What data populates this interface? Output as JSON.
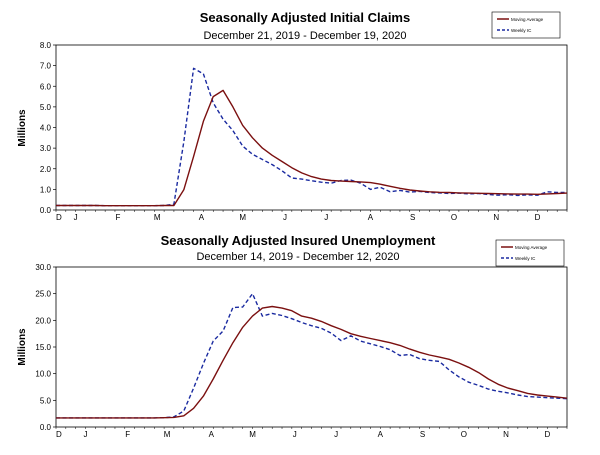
{
  "chart_data": [
    {
      "type": "line",
      "title": "Seasonally Adjusted Initial Claims",
      "subtitle": "December 21, 2019 - December 19, 2020",
      "ylabel": "Millions",
      "xlabel": "",
      "ylim": [
        0,
        8
      ],
      "yticks": [
        "0.0",
        "1.0",
        "2.0",
        "3.0",
        "4.0",
        "5.0",
        "6.0",
        "7.0",
        "8.0"
      ],
      "yvalues": [
        0,
        1,
        2,
        3,
        4,
        5,
        6,
        7,
        8
      ],
      "xlim": [
        0,
        52
      ],
      "x_tick_labels": [
        "D",
        "J",
        "F",
        "M",
        "A",
        "M",
        "J",
        "J",
        "A",
        "S",
        "O",
        "N",
        "D"
      ],
      "x_tick_positions": [
        0.3,
        2,
        6.3,
        10.3,
        14.8,
        19,
        23.3,
        27.5,
        32,
        36.3,
        40.5,
        44.8,
        49
      ],
      "legend": {
        "position": "top-right",
        "entries": [
          "Moving Average",
          "Weekly IC"
        ]
      },
      "series": [
        {
          "name": "Moving Average",
          "color": "#7b1010",
          "style": "solid",
          "x": [
            0,
            1,
            2,
            3,
            4,
            5,
            6,
            7,
            8,
            9,
            10,
            11,
            12,
            13,
            14,
            15,
            16,
            17,
            18,
            19,
            20,
            21,
            22,
            23,
            24,
            25,
            26,
            27,
            28,
            29,
            30,
            31,
            32,
            33,
            34,
            35,
            36,
            37,
            38,
            39,
            40,
            41,
            42,
            43,
            44,
            45,
            46,
            47,
            48,
            49,
            50,
            51,
            52
          ],
          "values": [
            0.22,
            0.22,
            0.22,
            0.22,
            0.22,
            0.21,
            0.21,
            0.21,
            0.21,
            0.21,
            0.21,
            0.22,
            0.22,
            0.98,
            2.6,
            4.3,
            5.5,
            5.8,
            5.0,
            4.1,
            3.5,
            3.0,
            2.65,
            2.35,
            2.05,
            1.8,
            1.62,
            1.5,
            1.43,
            1.4,
            1.38,
            1.36,
            1.33,
            1.25,
            1.15,
            1.05,
            0.97,
            0.92,
            0.88,
            0.86,
            0.85,
            0.83,
            0.82,
            0.81,
            0.8,
            0.79,
            0.78,
            0.77,
            0.77,
            0.76,
            0.78,
            0.8,
            0.82
          ]
        },
        {
          "name": "Weekly IC",
          "color": "#1a2aa0",
          "style": "dashed",
          "x": [
            0,
            1,
            2,
            3,
            4,
            5,
            6,
            7,
            8,
            9,
            10,
            11,
            12,
            13,
            14,
            15,
            16,
            17,
            18,
            19,
            20,
            21,
            22,
            23,
            24,
            25,
            26,
            27,
            28,
            29,
            30,
            31,
            32,
            33,
            34,
            35,
            36,
            37,
            38,
            39,
            40,
            41,
            42,
            43,
            44,
            45,
            46,
            47,
            48,
            49,
            50,
            51,
            52
          ],
          "values": [
            0.22,
            0.22,
            0.22,
            0.22,
            0.22,
            0.21,
            0.21,
            0.21,
            0.21,
            0.21,
            0.21,
            0.22,
            0.28,
            3.3,
            6.87,
            6.6,
            5.2,
            4.4,
            3.85,
            3.1,
            2.7,
            2.45,
            2.2,
            1.9,
            1.55,
            1.5,
            1.42,
            1.35,
            1.3,
            1.43,
            1.45,
            1.3,
            1.0,
            1.1,
            0.88,
            0.95,
            0.87,
            0.9,
            0.85,
            0.83,
            0.8,
            0.82,
            0.78,
            0.8,
            0.75,
            0.72,
            0.74,
            0.71,
            0.73,
            0.72,
            0.88,
            0.85,
            0.85
          ]
        }
      ]
    },
    {
      "type": "line",
      "title": "Seasonally Adjusted Insured Unemployment",
      "subtitle": "December 14, 2019 - December 12, 2020",
      "ylabel": "Millions",
      "xlabel": "",
      "ylim": [
        0,
        30
      ],
      "yticks": [
        "0.0",
        "5.0",
        "10.0",
        "15.0",
        "20.0",
        "25.0",
        "30.0"
      ],
      "yvalues": [
        0,
        5,
        10,
        15,
        20,
        25,
        30
      ],
      "xlim": [
        0,
        52
      ],
      "x_tick_labels": [
        "D",
        "J",
        "F",
        "M",
        "A",
        "M",
        "J",
        "J",
        "A",
        "S",
        "O",
        "N",
        "D"
      ],
      "x_tick_positions": [
        0.3,
        3,
        7.3,
        11.3,
        15.8,
        20,
        24.3,
        28.5,
        33,
        37.3,
        41.5,
        45.8,
        50
      ],
      "legend": {
        "position": "top-right",
        "entries": [
          "Moving Average",
          "Weekly IC"
        ]
      },
      "series": [
        {
          "name": "Moving Average",
          "color": "#7b1010",
          "style": "solid",
          "x": [
            0,
            1,
            2,
            3,
            4,
            5,
            6,
            7,
            8,
            9,
            10,
            11,
            12,
            13,
            14,
            15,
            16,
            17,
            18,
            19,
            20,
            21,
            22,
            23,
            24,
            25,
            26,
            27,
            28,
            29,
            30,
            31,
            32,
            33,
            34,
            35,
            36,
            37,
            38,
            39,
            40,
            41,
            42,
            43,
            44,
            45,
            46,
            47,
            48,
            49,
            50,
            51,
            52
          ],
          "values": [
            1.7,
            1.7,
            1.7,
            1.7,
            1.7,
            1.7,
            1.7,
            1.7,
            1.7,
            1.7,
            1.7,
            1.75,
            1.8,
            2.1,
            3.5,
            5.8,
            9.0,
            12.5,
            15.8,
            18.7,
            20.8,
            22.3,
            22.6,
            22.3,
            21.8,
            20.8,
            20.4,
            19.8,
            19.0,
            18.3,
            17.5,
            17.0,
            16.6,
            16.2,
            15.8,
            15.3,
            14.6,
            14.0,
            13.5,
            13.1,
            12.7,
            12.0,
            11.2,
            10.2,
            9.0,
            8.0,
            7.3,
            6.8,
            6.3,
            6.0,
            5.8,
            5.6,
            5.4
          ]
        },
        {
          "name": "Weekly IC",
          "color": "#1a2aa0",
          "style": "dashed",
          "x": [
            0,
            1,
            2,
            3,
            4,
            5,
            6,
            7,
            8,
            9,
            10,
            11,
            12,
            13,
            14,
            15,
            16,
            17,
            18,
            19,
            20,
            21,
            22,
            23,
            24,
            25,
            26,
            27,
            28,
            29,
            30,
            31,
            32,
            33,
            34,
            35,
            36,
            37,
            38,
            39,
            40,
            41,
            42,
            43,
            44,
            45,
            46,
            47,
            48,
            49,
            50,
            51,
            52
          ],
          "values": [
            1.7,
            1.7,
            1.7,
            1.7,
            1.7,
            1.7,
            1.7,
            1.7,
            1.7,
            1.7,
            1.7,
            1.75,
            1.9,
            3.0,
            7.3,
            11.9,
            16.1,
            18.0,
            22.4,
            22.5,
            25.0,
            20.8,
            21.3,
            20.9,
            20.3,
            19.6,
            19.0,
            18.5,
            17.6,
            16.2,
            17.1,
            16.1,
            15.6,
            15.1,
            14.5,
            13.4,
            13.6,
            12.8,
            12.5,
            12.3,
            10.7,
            9.4,
            8.4,
            7.8,
            7.1,
            6.7,
            6.4,
            6.0,
            5.7,
            5.6,
            5.5,
            5.4,
            5.3
          ]
        }
      ]
    }
  ]
}
